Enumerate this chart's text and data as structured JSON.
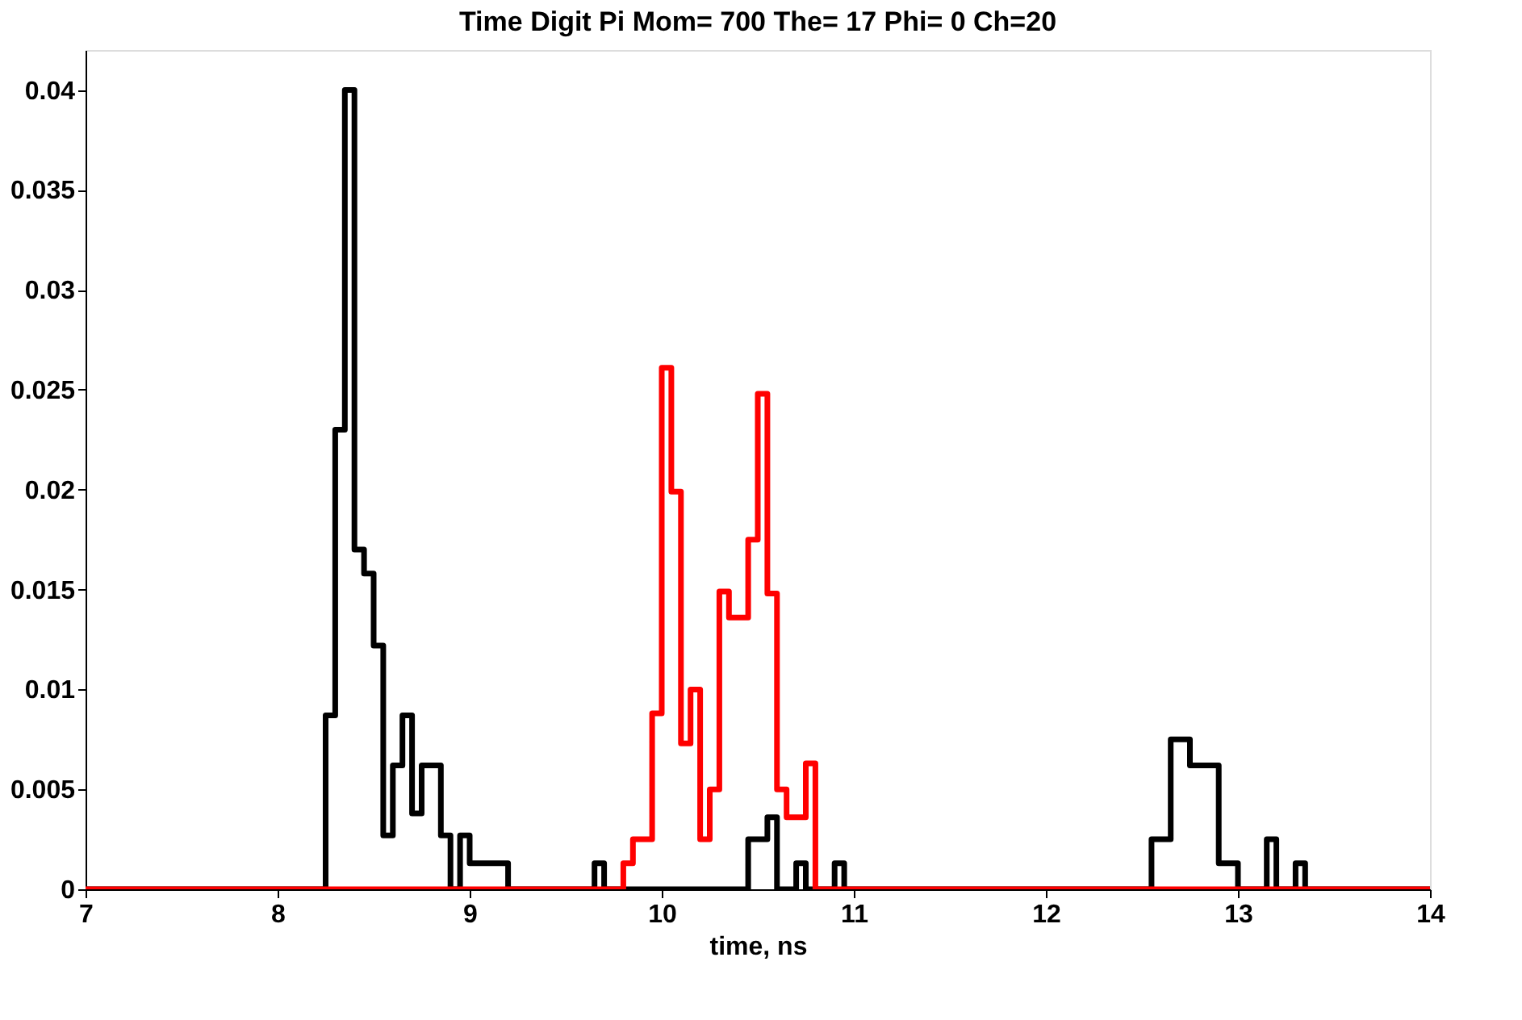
{
  "chart_data": {
    "type": "step",
    "title": "Time Digit Pi Mom= 700 The= 17 Phi= 0 Ch=20",
    "xlabel": "time, ns",
    "xlim": [
      7,
      14
    ],
    "xticks": [
      7,
      8,
      9,
      10,
      11,
      12,
      13,
      14
    ],
    "ylim": [
      0,
      0.042
    ],
    "yticks": [
      0,
      0.005,
      0.01,
      0.015,
      0.02,
      0.025,
      0.03,
      0.035,
      0.04
    ],
    "grid": false,
    "series": [
      {
        "color": "#000000",
        "x": [
          7,
          8.25,
          8.3,
          8.35,
          8.4,
          8.45,
          8.5,
          8.55,
          8.6,
          8.65,
          8.7,
          8.75,
          8.85,
          8.9,
          8.95,
          9.0,
          9.2,
          9.65,
          9.7,
          10.45,
          10.5,
          10.55,
          10.6,
          10.7,
          10.75,
          10.9,
          10.95,
          12.55,
          12.65,
          12.7,
          12.75,
          12.9,
          13.0,
          13.15,
          13.2,
          13.3,
          13.35,
          14
        ],
        "values": [
          0,
          0.0087,
          0.023,
          0.04,
          0.017,
          0.0158,
          0.0122,
          0.0027,
          0.0062,
          0.0087,
          0.0038,
          0.0062,
          0.0027,
          0,
          0.0027,
          0.0013,
          0,
          0.0013,
          0,
          0.0025,
          0.0025,
          0.0036,
          0,
          0.0013,
          0,
          0.0013,
          0,
          0.0025,
          0.0075,
          0.0075,
          0.0062,
          0.0013,
          0,
          0.0025,
          0,
          0.0013,
          0,
          0
        ]
      },
      {
        "color": "#ff0000",
        "x": [
          7,
          9.8,
          9.85,
          9.95,
          10.0,
          10.05,
          10.1,
          10.15,
          10.2,
          10.25,
          10.3,
          10.35,
          10.4,
          10.45,
          10.5,
          10.55,
          10.6,
          10.65,
          10.7,
          10.75,
          10.8,
          14
        ],
        "values": [
          0,
          0.0013,
          0.0025,
          0.0088,
          0.0261,
          0.0199,
          0.0073,
          0.01,
          0.0025,
          0.005,
          0.0149,
          0.0136,
          0.0136,
          0.0175,
          0.0248,
          0.0148,
          0.005,
          0.0036,
          0.0036,
          0.0063,
          0,
          0
        ]
      }
    ]
  }
}
